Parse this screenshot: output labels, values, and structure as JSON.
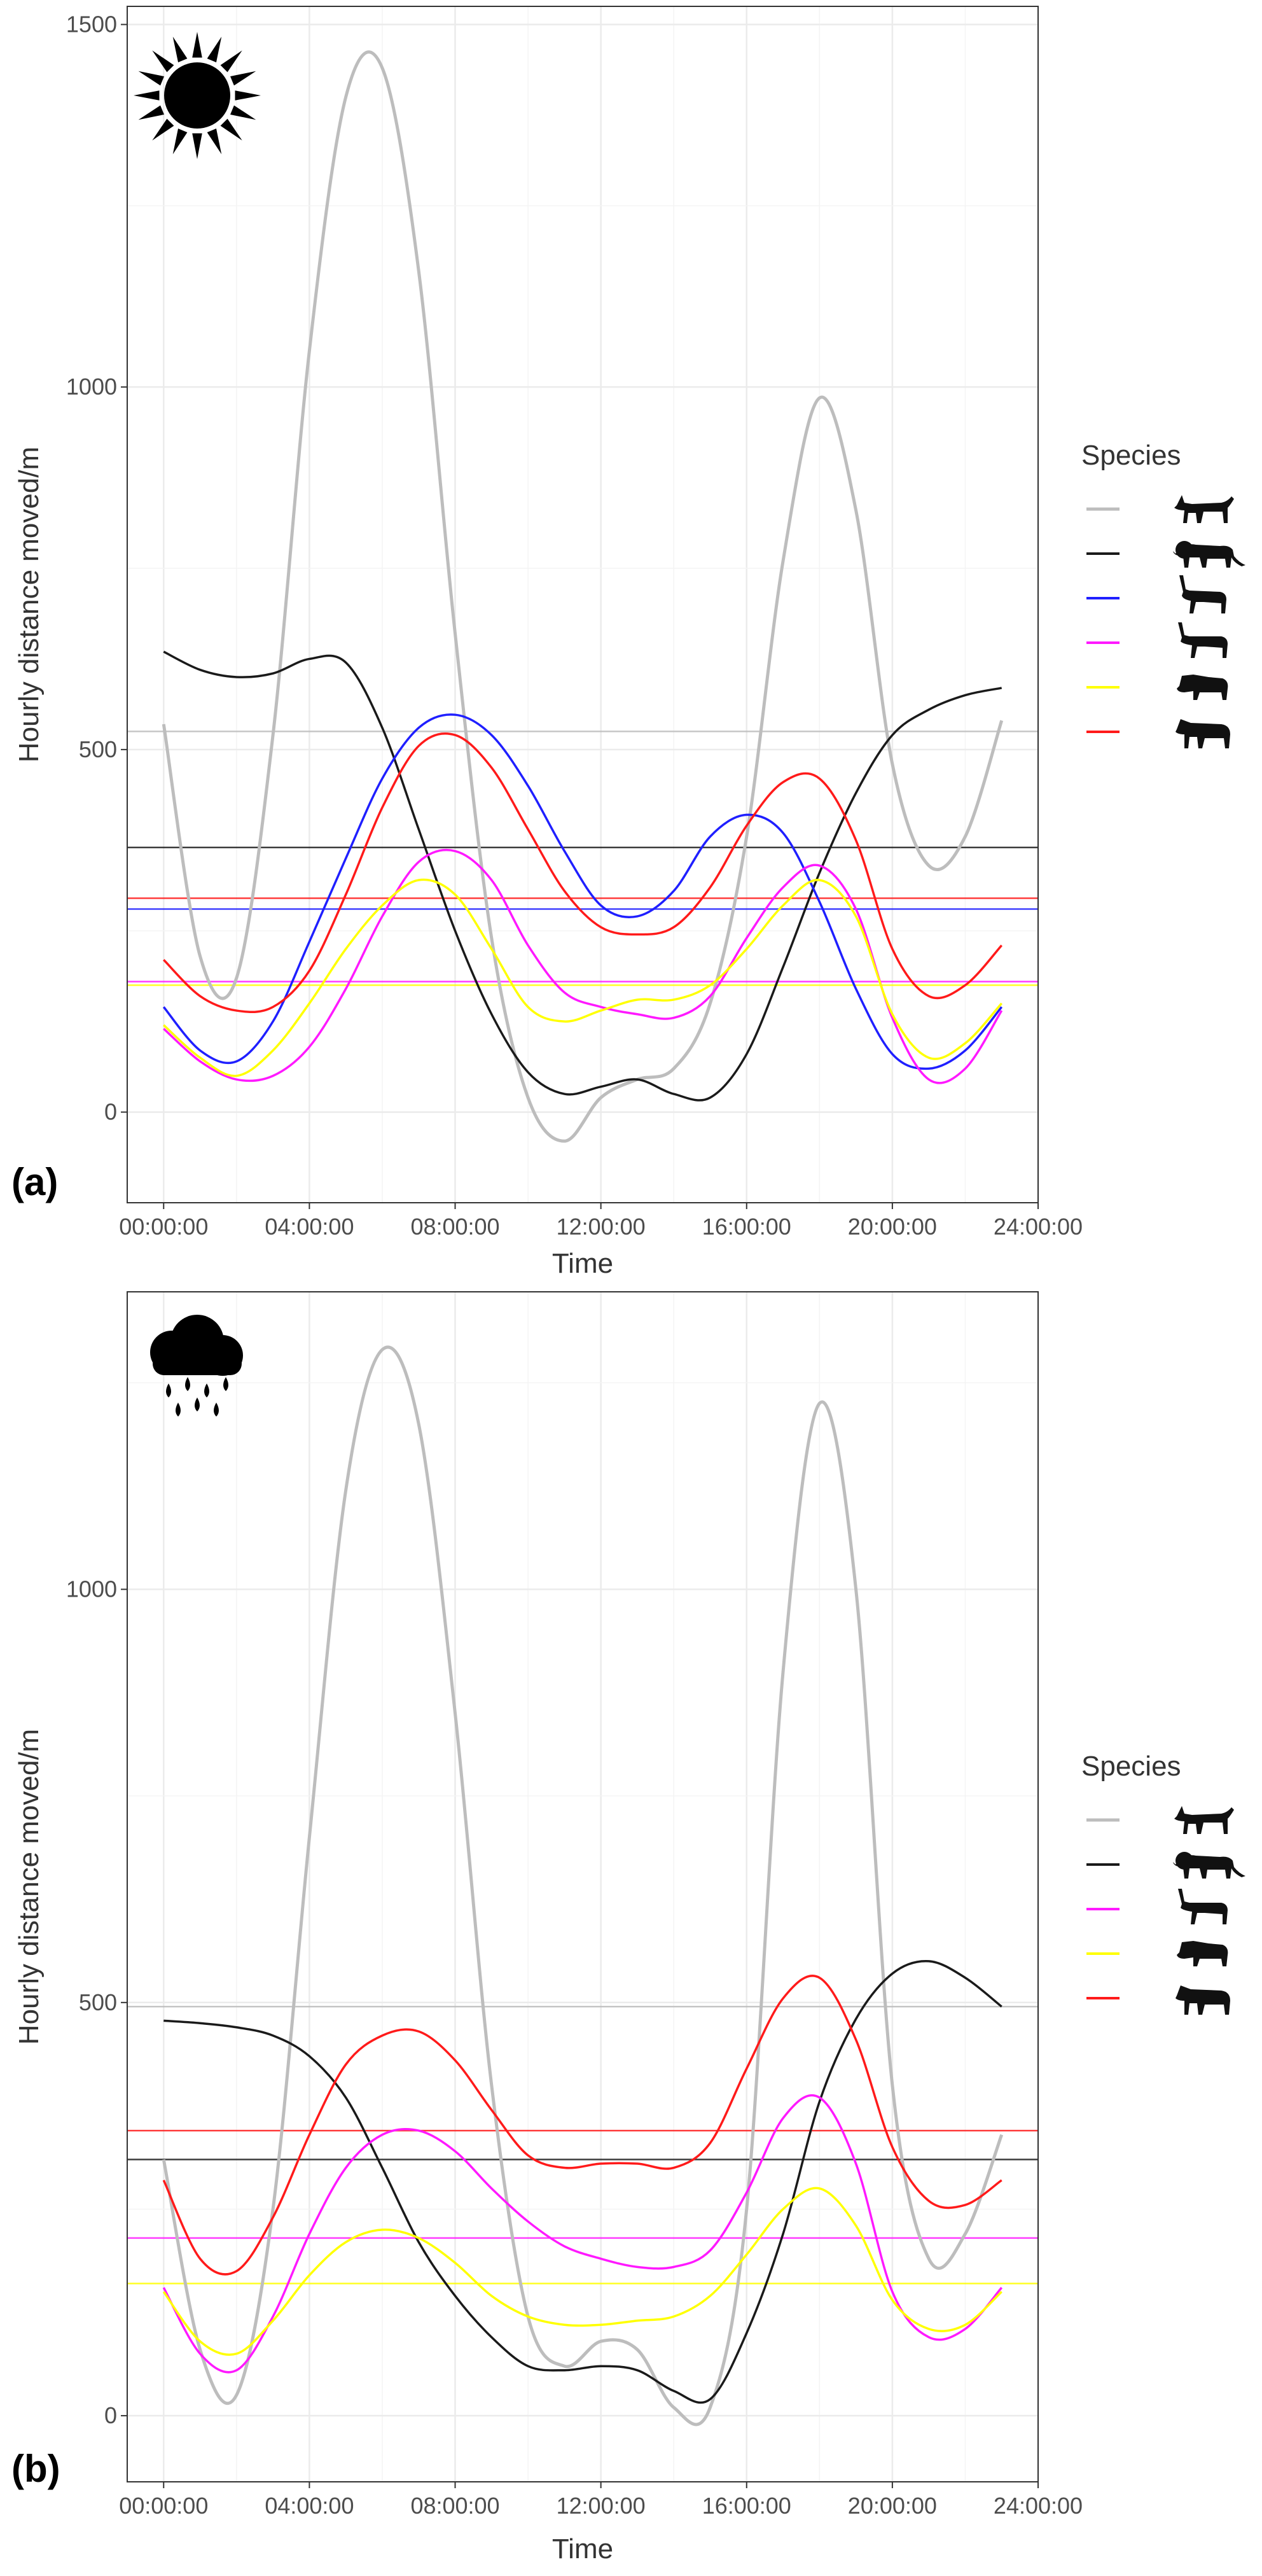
{
  "chart_data": [
    {
      "type": "line",
      "panel_label": "(a)",
      "weather_icon": "sun-icon",
      "xlabel": "Time",
      "ylabel": "Hourly distance moved/m",
      "x_ticks": [
        "00:00:00",
        "04:00:00",
        "08:00:00",
        "12:00:00",
        "16:00:00",
        "20:00:00",
        "24:00:00"
      ],
      "y_ticks": [
        0,
        500,
        1000,
        1500
      ],
      "xlim": [
        -1,
        24
      ],
      "ylim": [
        -125,
        1525
      ],
      "grid": true,
      "legend": {
        "title": "Species",
        "placement": "right",
        "entries": [
          {
            "color": "#bdbdbd",
            "icon": "wild-dog-icon"
          },
          {
            "color": "#1a1a1a",
            "icon": "lion-icon"
          },
          {
            "color": "#1f1fff",
            "icon": "impala-icon"
          },
          {
            "color": "#ff19ff",
            "icon": "antelope-icon"
          },
          {
            "color": "#ffff00",
            "icon": "wildebeest-icon"
          },
          {
            "color": "#ff1a1a",
            "icon": "zebra-icon"
          }
        ]
      },
      "series": [
        {
          "color": "#bdbdbd",
          "mean": 525,
          "x": [
            0,
            1,
            2,
            3,
            4,
            5,
            6,
            7,
            8,
            9,
            10,
            11,
            12,
            13,
            14,
            15,
            16,
            17,
            18,
            19,
            20,
            21,
            22,
            23
          ],
          "y": [
            535,
            215,
            185,
            520,
            1050,
            1400,
            1440,
            1160,
            660,
            240,
            20,
            -40,
            20,
            45,
            60,
            150,
            380,
            760,
            985,
            830,
            480,
            340,
            380,
            540
          ]
        },
        {
          "color": "#1a1a1a",
          "mean": 365,
          "x": [
            0,
            1,
            2,
            3,
            4,
            5,
            6,
            7,
            8,
            9,
            10,
            11,
            12,
            13,
            14,
            15,
            16,
            17,
            18,
            19,
            20,
            21,
            22,
            23
          ],
          "y": [
            635,
            610,
            600,
            605,
            625,
            620,
            530,
            390,
            250,
            135,
            55,
            25,
            35,
            45,
            25,
            20,
            80,
            200,
            330,
            440,
            520,
            555,
            575,
            585
          ]
        },
        {
          "color": "#1f1fff",
          "mean": 280,
          "x": [
            0,
            1,
            2,
            3,
            4,
            5,
            6,
            7,
            8,
            9,
            10,
            11,
            12,
            13,
            14,
            15,
            16,
            17,
            18,
            19,
            20,
            21,
            22,
            23
          ],
          "y": [
            145,
            85,
            70,
            125,
            235,
            350,
            460,
            530,
            548,
            520,
            450,
            360,
            285,
            270,
            305,
            380,
            410,
            385,
            290,
            170,
            80,
            60,
            85,
            145
          ]
        },
        {
          "color": "#ff19ff",
          "mean": 180,
          "x": [
            0,
            1,
            2,
            3,
            4,
            5,
            6,
            7,
            8,
            9,
            10,
            11,
            12,
            13,
            14,
            15,
            16,
            17,
            18,
            19,
            20,
            21,
            22,
            23
          ],
          "y": [
            115,
            70,
            45,
            50,
            90,
            170,
            270,
            345,
            360,
            320,
            230,
            165,
            145,
            135,
            130,
            160,
            240,
            310,
            340,
            280,
            130,
            45,
            60,
            140
          ]
        },
        {
          "color": "#ffff00",
          "mean": 175,
          "x": [
            0,
            1,
            2,
            3,
            4,
            5,
            6,
            7,
            8,
            9,
            10,
            11,
            12,
            13,
            14,
            15,
            16,
            17,
            18,
            19,
            20,
            21,
            22,
            23
          ],
          "y": [
            120,
            75,
            50,
            85,
            150,
            225,
            285,
            320,
            300,
            225,
            145,
            125,
            140,
            155,
            155,
            175,
            225,
            285,
            320,
            270,
            135,
            75,
            95,
            150
          ]
        },
        {
          "color": "#ff1a1a",
          "mean": 295,
          "x": [
            0,
            1,
            2,
            3,
            4,
            5,
            6,
            7,
            8,
            9,
            10,
            11,
            12,
            13,
            14,
            15,
            16,
            17,
            18,
            19,
            20,
            21,
            22,
            23
          ],
          "y": [
            210,
            160,
            140,
            145,
            195,
            300,
            420,
            505,
            520,
            475,
            390,
            305,
            255,
            245,
            255,
            310,
            395,
            455,
            460,
            375,
            225,
            160,
            175,
            230
          ]
        }
      ]
    },
    {
      "type": "line",
      "panel_label": "(b)",
      "weather_icon": "rain-cloud-icon",
      "xlabel": "Time",
      "ylabel": "Hourly distance moved/m",
      "x_ticks": [
        "00:00:00",
        "04:00:00",
        "08:00:00",
        "12:00:00",
        "16:00:00",
        "20:00:00",
        "24:00:00"
      ],
      "y_ticks": [
        0,
        500,
        1000
      ],
      "xlim": [
        -1,
        24
      ],
      "ylim": [
        -80,
        1360
      ],
      "grid": true,
      "legend": {
        "title": "Species",
        "placement": "right",
        "entries": [
          {
            "color": "#bdbdbd",
            "icon": "wild-dog-icon"
          },
          {
            "color": "#1a1a1a",
            "icon": "lion-icon"
          },
          {
            "color": "#ff19ff",
            "icon": "antelope-icon"
          },
          {
            "color": "#ffff00",
            "icon": "wildebeest-icon"
          },
          {
            "color": "#ff1a1a",
            "icon": "zebra-icon"
          }
        ]
      },
      "series": [
        {
          "color": "#bdbdbd",
          "mean": 495,
          "x": [
            0,
            1,
            2,
            3,
            4,
            5,
            6,
            7,
            8,
            9,
            10,
            11,
            12,
            13,
            14,
            15,
            16,
            17,
            18,
            19,
            20,
            21,
            22,
            23
          ],
          "y": [
            310,
            80,
            25,
            250,
            700,
            1120,
            1290,
            1200,
            850,
            400,
            120,
            60,
            90,
            80,
            10,
            10,
            250,
            900,
            1225,
            1000,
            400,
            190,
            220,
            340
          ]
        },
        {
          "color": "#1a1a1a",
          "mean": 310,
          "x": [
            0,
            1,
            2,
            3,
            4,
            5,
            6,
            7,
            8,
            9,
            10,
            11,
            12,
            13,
            14,
            15,
            16,
            17,
            18,
            19,
            20,
            21,
            22,
            23
          ],
          "y": [
            478,
            475,
            470,
            460,
            435,
            385,
            300,
            210,
            145,
            95,
            60,
            55,
            60,
            55,
            30,
            20,
            100,
            220,
            380,
            480,
            535,
            550,
            530,
            495
          ]
        },
        {
          "color": "#ff19ff",
          "mean": 215,
          "x": [
            0,
            1,
            2,
            3,
            4,
            5,
            6,
            7,
            8,
            9,
            10,
            11,
            12,
            13,
            14,
            15,
            16,
            17,
            18,
            19,
            20,
            21,
            22,
            23
          ],
          "y": [
            155,
            75,
            55,
            120,
            220,
            300,
            340,
            345,
            320,
            275,
            235,
            205,
            190,
            180,
            180,
            200,
            270,
            360,
            385,
            305,
            150,
            95,
            105,
            155
          ]
        },
        {
          "color": "#ffff00",
          "mean": 160,
          "x": [
            0,
            1,
            2,
            3,
            4,
            5,
            6,
            7,
            8,
            9,
            10,
            11,
            12,
            13,
            14,
            15,
            16,
            17,
            18,
            19,
            20,
            21,
            22,
            23
          ],
          "y": [
            150,
            90,
            75,
            115,
            170,
            210,
            225,
            215,
            185,
            145,
            120,
            110,
            110,
            115,
            120,
            145,
            195,
            250,
            275,
            230,
            140,
            105,
            110,
            150
          ]
        },
        {
          "color": "#ff1a1a",
          "mean": 345,
          "x": [
            0,
            1,
            2,
            3,
            4,
            5,
            6,
            7,
            8,
            9,
            10,
            11,
            12,
            13,
            14,
            15,
            16,
            17,
            18,
            19,
            20,
            21,
            22,
            23
          ],
          "y": [
            285,
            190,
            175,
            240,
            340,
            425,
            460,
            465,
            430,
            370,
            315,
            300,
            305,
            305,
            300,
            330,
            420,
            505,
            530,
            455,
            325,
            260,
            255,
            285
          ]
        }
      ]
    }
  ]
}
